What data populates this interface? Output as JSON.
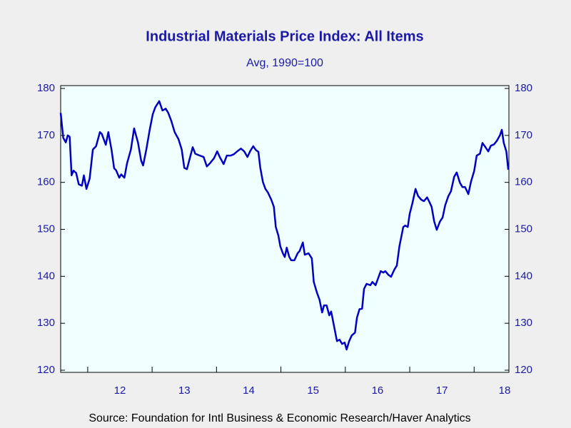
{
  "chart_data": {
    "type": "line",
    "title": "Industrial Materials Price Index: All Items",
    "subtitle": "Avg, 1990=100",
    "source": "Source:  Foundation for Intl Business & Economic Research/Haver Analytics",
    "xlim": [
      2011.58,
      2018.54
    ],
    "xticks": [
      {
        "value": 2012,
        "label": "12"
      },
      {
        "value": 2013,
        "label": "13"
      },
      {
        "value": 2014,
        "label": "14"
      },
      {
        "value": 2015,
        "label": "15"
      },
      {
        "value": 2016,
        "label": "16"
      },
      {
        "value": 2017,
        "label": "17"
      },
      {
        "value": 2018,
        "label": "18"
      }
    ],
    "ylim": [
      120,
      180
    ],
    "yticks": [
      120,
      130,
      140,
      150,
      160,
      170,
      180
    ],
    "right_axis": true,
    "x": [
      2011.58,
      2011.62,
      2011.66,
      2011.69,
      2011.72,
      2011.75,
      2011.78,
      2011.82,
      2011.86,
      2011.91,
      2011.94,
      2011.98,
      2012.03,
      2012.08,
      2012.13,
      2012.19,
      2012.22,
      2012.28,
      2012.32,
      2012.37,
      2012.41,
      2012.44,
      2012.49,
      2012.52,
      2012.57,
      2012.61,
      2012.67,
      2012.72,
      2012.78,
      2012.83,
      2012.86,
      2012.91,
      2012.96,
      2013.01,
      2013.05,
      2013.11,
      2013.16,
      2013.21,
      2013.25,
      2013.3,
      2013.35,
      2013.41,
      2013.46,
      2013.5,
      2013.54,
      2013.59,
      2013.63,
      2013.67,
      2013.74,
      2013.8,
      2013.85,
      2013.9,
      2013.96,
      2014.01,
      2014.05,
      2014.11,
      2014.16,
      2014.22,
      2014.27,
      2014.33,
      2014.38,
      2014.43,
      2014.48,
      2014.52,
      2014.57,
      2014.61,
      2014.65,
      2014.68,
      2014.72,
      2014.76,
      2014.8,
      2014.85,
      2014.89,
      2014.92,
      2014.96,
      2014.99,
      2015.03,
      2015.06,
      2015.09,
      2015.13,
      2015.16,
      2015.21,
      2015.26,
      2015.29,
      2015.34,
      2015.37,
      2015.43,
      2015.48,
      2015.51,
      2015.56,
      2015.6,
      2015.64,
      2015.67,
      2015.71,
      2015.75,
      2015.78,
      2015.82,
      2015.87,
      2015.91,
      2015.95,
      2015.99,
      2016.02,
      2016.06,
      2016.1,
      2016.15,
      2016.18,
      2016.22,
      2016.26,
      2016.29,
      2016.33,
      2016.39,
      2016.42,
      2016.47,
      2016.51,
      2016.55,
      2016.59,
      2016.62,
      2016.67,
      2016.71,
      2016.76,
      2016.8,
      2016.84,
      2016.9,
      2016.93,
      2016.97,
      2017.0,
      2017.04,
      2017.09,
      2017.13,
      2017.18,
      2017.22,
      2017.27,
      2017.31,
      2017.34,
      2017.38,
      2017.42,
      2017.47,
      2017.51,
      2017.55,
      2017.6,
      2017.64,
      2017.69,
      2017.73,
      2017.78,
      2017.82,
      2017.86,
      2017.91,
      2017.95,
      2018.0,
      2018.04,
      2018.09,
      2018.13,
      2018.17,
      2018.22,
      2018.26,
      2018.31,
      2018.35,
      2018.4,
      2018.43,
      2018.46,
      2018.5,
      2018.53
    ],
    "series": [
      {
        "name": "Industrial Materials Price Index: All Items",
        "color": "#0000c0",
        "values": [
          174.8,
          169.5,
          168.5,
          170,
          169.7,
          161.5,
          162.5,
          162,
          159.6,
          159.3,
          161.5,
          158.6,
          160.8,
          167,
          167.7,
          170.7,
          170.3,
          168,
          170.7,
          166.9,
          163,
          162.6,
          161,
          161.7,
          161,
          164,
          167,
          171.5,
          168.5,
          164.6,
          163.6,
          167,
          171,
          174.5,
          176,
          177.3,
          175.3,
          175.7,
          174.8,
          173,
          170.7,
          169.2,
          167,
          163.1,
          162.8,
          165.4,
          167.5,
          166.1,
          165.7,
          165.4,
          163.4,
          164.1,
          165.1,
          166.6,
          165.4,
          163.9,
          165.7,
          165.7,
          166,
          166.7,
          167.2,
          166.6,
          165.4,
          166.6,
          167.7,
          166.9,
          166.5,
          163.1,
          160.1,
          158.6,
          157.8,
          156.3,
          154.8,
          150.5,
          148.7,
          146.4,
          144.9,
          144.1,
          146.1,
          144.1,
          143.4,
          143.4,
          144.9,
          145.4,
          147.2,
          144.6,
          144.9,
          143.8,
          138.8,
          136.5,
          135,
          132.3,
          133.8,
          133.8,
          131.7,
          132.5,
          129.7,
          126.2,
          126.5,
          125.6,
          125.9,
          124.4,
          126.2,
          127.4,
          128,
          131.2,
          133,
          133.1,
          137.3,
          138.4,
          138.1,
          138.8,
          138.1,
          139.6,
          141.1,
          140.8,
          141.1,
          140.3,
          139.9,
          141.4,
          142.3,
          146.4,
          150.5,
          150.8,
          150.5,
          153.3,
          155.5,
          158.6,
          157.1,
          156.3,
          156,
          156.8,
          155.7,
          154.8,
          151.7,
          149.9,
          151.7,
          152.5,
          155.1,
          157.1,
          158.1,
          161.2,
          162.1,
          159.9,
          159,
          159,
          157.5,
          160.1,
          162.4,
          165.7,
          166.1,
          168.4,
          167.6,
          166.6,
          167.8,
          168.1,
          168.8,
          170,
          171.2,
          168.4,
          166.6,
          162.7
        ]
      }
    ]
  }
}
